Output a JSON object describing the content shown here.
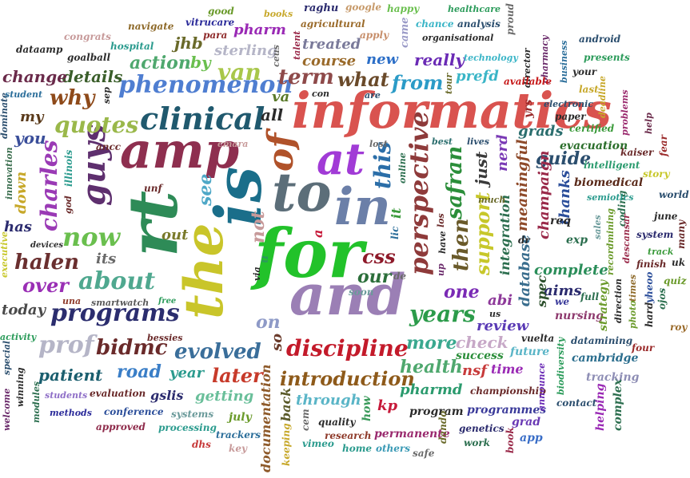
{
  "words": [
    {
      "text": "informatics",
      "color": "#d9534f"
    },
    {
      "text": "the",
      "color": "#c9c52a"
    },
    {
      "text": "rt",
      "color": "#2e8b57"
    },
    {
      "text": "is",
      "color": "#1a6e8a"
    },
    {
      "text": "for",
      "color": "#22c22a"
    },
    {
      "text": "and",
      "color": "#9b7fb5"
    },
    {
      "text": "amp",
      "color": "#8e2f4f"
    },
    {
      "text": "to",
      "color": "#5c6e79"
    },
    {
      "text": "in",
      "color": "#6b7fa8"
    },
    {
      "text": "at",
      "color": "#a13bd6"
    },
    {
      "text": "of",
      "color": "#b0522a"
    },
    {
      "text": "clinical",
      "color": "#20596e"
    },
    {
      "text": "phenomenon",
      "color": "#4f7ed1"
    },
    {
      "text": "perspective",
      "color": "#8e3a3a"
    },
    {
      "text": "discipline",
      "color": "#c31a2a"
    },
    {
      "text": "programs",
      "color": "#2b2d6e"
    },
    {
      "text": "introduction",
      "color": "#8e5a1a"
    },
    {
      "text": "evolved",
      "color": "#3a6e9a"
    },
    {
      "text": "about",
      "color": "#4fa88f"
    },
    {
      "text": "now",
      "color": "#6abf4e"
    },
    {
      "text": "guys",
      "color": "#5e2f6e"
    },
    {
      "text": "quotes",
      "color": "#9ab84a"
    },
    {
      "text": "years",
      "color": "#2b9b4a"
    },
    {
      "text": "halen",
      "color": "#6a2f2f"
    },
    {
      "text": "over",
      "color": "#9a2fb5"
    },
    {
      "text": "this",
      "color": "#2b6ea8"
    },
    {
      "text": "what",
      "color": "#6a4a2a"
    },
    {
      "text": "term",
      "color": "#8e4a4a"
    },
    {
      "text": "from",
      "color": "#2b9bc7"
    },
    {
      "text": "bidmc",
      "color": "#6a2a2a"
    },
    {
      "text": "prof",
      "color": "#b5b5c7"
    },
    {
      "text": "later",
      "color": "#c73a2a"
    },
    {
      "text": "more",
      "color": "#3aa88f"
    },
    {
      "text": "health",
      "color": "#4fa86e"
    },
    {
      "text": "patient",
      "color": "#1a5e6e"
    },
    {
      "text": "road",
      "color": "#3a7ec7"
    },
    {
      "text": "charles",
      "color": "#9a3ab5"
    },
    {
      "text": "safran",
      "color": "#2b8e3a"
    },
    {
      "text": "then",
      "color": "#6a5a2a"
    },
    {
      "text": "support",
      "color": "#c7c72a"
    },
    {
      "text": "one",
      "color": "#7a2ab5"
    },
    {
      "text": "guide",
      "color": "#2b4e6e"
    },
    {
      "text": "van",
      "color": "#a8c74a"
    },
    {
      "text": "why",
      "color": "#8e4a1a"
    },
    {
      "text": "action",
      "color": "#4fa86e"
    },
    {
      "text": "details",
      "color": "#3a5e2a"
    },
    {
      "text": "change",
      "color": "#6a2a4a"
    },
    {
      "text": "you",
      "color": "#3a4e9a"
    },
    {
      "text": "my",
      "color": "#5a3a1a"
    },
    {
      "text": "all",
      "color": "#2b2b2b"
    },
    {
      "text": "va",
      "color": "#5a7a2a"
    },
    {
      "text": "really",
      "color": "#6a2ab5"
    },
    {
      "text": "new",
      "color": "#2b6ec7"
    },
    {
      "text": "course",
      "color": "#9a6a2a"
    },
    {
      "text": "treated",
      "color": "#7a7a9a"
    },
    {
      "text": "sterling",
      "color": "#b5b5c7"
    },
    {
      "text": "by",
      "color": "#6abf4e"
    },
    {
      "text": "jhb",
      "color": "#6a6a2a"
    },
    {
      "text": "pharm",
      "color": "#9a2ab5"
    },
    {
      "text": "our",
      "color": "#2b6e3a"
    },
    {
      "text": "css",
      "color": "#8e1a2a"
    },
    {
      "text": "not",
      "color": "#c79a9a"
    },
    {
      "text": "see",
      "color": "#4fa8c7"
    },
    {
      "text": "out",
      "color": "#7a7a2a"
    },
    {
      "text": "its",
      "color": "#6a6a6a"
    },
    {
      "text": "has",
      "color": "#2b2b6e"
    },
    {
      "text": "down",
      "color": "#c7a82a"
    },
    {
      "text": "today",
      "color": "#4a4a4a"
    },
    {
      "text": "on",
      "color": "#8e9ac7"
    },
    {
      "text": "so",
      "color": "#6a3a2a"
    },
    {
      "text": "year",
      "color": "#2b9b8e"
    },
    {
      "text": "getting",
      "color": "#6abf9a"
    },
    {
      "text": "through",
      "color": "#5ab5c7"
    },
    {
      "text": "pharmd",
      "color": "#2b9b6e"
    },
    {
      "text": "check",
      "color": "#c7a8c7"
    },
    {
      "text": "review",
      "color": "#5a3ab5"
    },
    {
      "text": "complete",
      "color": "#2b8e5a"
    },
    {
      "text": "aims",
      "color": "#2b2b6e"
    },
    {
      "text": "nsf",
      "color": "#c73a3a"
    },
    {
      "text": "time",
      "color": "#9a2ab5"
    },
    {
      "text": "success",
      "color": "#2b8e3a"
    },
    {
      "text": "database",
      "color": "#3a6e8e"
    },
    {
      "text": "meaningful",
      "color": "#8e4a2a"
    },
    {
      "text": "integration",
      "color": "#2b6e4e"
    },
    {
      "text": "champaign",
      "color": "#9a2a4a"
    },
    {
      "text": "thanks",
      "color": "#2b4e9a"
    },
    {
      "text": "grads",
      "color": "#2b6e6e"
    },
    {
      "text": "nerd",
      "color": "#7a3ab5"
    },
    {
      "text": "just",
      "color": "#3a3a3a"
    },
    {
      "text": "prefd",
      "color": "#3ab5c7"
    },
    {
      "text": "biomedical",
      "color": "#5a2a1a"
    },
    {
      "text": "evacuation",
      "color": "#2b6e2b"
    },
    {
      "text": "intelligent",
      "color": "#2b9b6e"
    },
    {
      "text": "spec",
      "color": "#2b4e2b"
    },
    {
      "text": "abi",
      "color": "#8e3a9a"
    },
    {
      "text": "kp",
      "color": "#c71a3a"
    },
    {
      "text": "program",
      "color": "#2b2b2b"
    },
    {
      "text": "documentation",
      "color": "#8e5a2a"
    },
    {
      "text": "back",
      "color": "#5a5a2a"
    },
    {
      "text": "permanente",
      "color": "#9a2a6e"
    },
    {
      "text": "championship",
      "color": "#6a2a2a"
    },
    {
      "text": "programmes",
      "color": "#3a3a9a"
    },
    {
      "text": "genetics",
      "color": "#2b2b6e"
    },
    {
      "text": "cambridge",
      "color": "#2b6e8e"
    },
    {
      "text": "future",
      "color": "#5ab5c7"
    },
    {
      "text": "vuelta",
      "color": "#2b2b2b"
    },
    {
      "text": "datamining",
      "color": "#2b4e6e"
    },
    {
      "text": "nursing",
      "color": "#8e3a6e"
    },
    {
      "text": "strategy",
      "color": "#6a9a2a"
    },
    {
      "text": "tracking",
      "color": "#8e8eb5"
    },
    {
      "text": "helping",
      "color": "#9a2ab5"
    },
    {
      "text": "complex",
      "color": "#2b6e4e"
    },
    {
      "text": "contact",
      "color": "#2b4e6e"
    },
    {
      "text": "app",
      "color": "#3a6ec7"
    },
    {
      "text": "grad",
      "color": "#6a3ab5"
    },
    {
      "text": "book",
      "color": "#9a2a4a"
    },
    {
      "text": "work",
      "color": "#2b6e4e"
    },
    {
      "text": "dando",
      "color": "#6a6a2a"
    },
    {
      "text": "safe",
      "color": "#6a6a6a"
    },
    {
      "text": "others",
      "color": "#3a9ab5"
    },
    {
      "text": "home",
      "color": "#2b9b8e"
    },
    {
      "text": "research",
      "color": "#8e3a2a"
    },
    {
      "text": "quality",
      "color": "#2b2b2b"
    },
    {
      "text": "vimeo",
      "color": "#2b9b8e"
    },
    {
      "text": "keeping",
      "color": "#c7a82a"
    },
    {
      "text": "cem",
      "color": "#6a6a6a"
    },
    {
      "text": "how",
      "color": "#3a9a5a"
    },
    {
      "text": "key",
      "color": "#c79a9a"
    },
    {
      "text": "trackers",
      "color": "#2b6e9a"
    },
    {
      "text": "july",
      "color": "#6a9a2a"
    },
    {
      "text": "dhs",
      "color": "#c73a3a"
    },
    {
      "text": "processing",
      "color": "#2b9b8e"
    },
    {
      "text": "systems",
      "color": "#6a9a9a"
    },
    {
      "text": "gslis",
      "color": "#2b2b6e"
    },
    {
      "text": "approved",
      "color": "#8e2a4a"
    },
    {
      "text": "conference",
      "color": "#2b4e9a"
    },
    {
      "text": "evaluation",
      "color": "#6a2a2a"
    },
    {
      "text": "methods",
      "color": "#2b2b9a"
    },
    {
      "text": "students",
      "color": "#8e6ec7"
    },
    {
      "text": "modules",
      "color": "#2b6e4e"
    },
    {
      "text": "winning",
      "color": "#2b2b2b"
    },
    {
      "text": "welcome",
      "color": "#6a2a6a"
    },
    {
      "text": "special",
      "color": "#2b4e6e"
    },
    {
      "text": "activity",
      "color": "#2b9b5a"
    },
    {
      "text": "smartwatch",
      "color": "#5a5a5a"
    },
    {
      "text": "una",
      "color": "#8e3a2a"
    },
    {
      "text": "bessies",
      "color": "#6a2a2a"
    },
    {
      "text": "executive",
      "color": "#c7c72a"
    },
    {
      "text": "illinois",
      "color": "#2b9b8e"
    },
    {
      "text": "innovation",
      "color": "#3a6e4e"
    },
    {
      "text": "dominate",
      "color": "#2b4e6e"
    },
    {
      "text": "student",
      "color": "#2b6e9a"
    },
    {
      "text": "dataamp",
      "color": "#2b2b2b"
    },
    {
      "text": "goalball",
      "color": "#2b2b2b"
    },
    {
      "text": "congrats",
      "color": "#c79a9a"
    },
    {
      "text": "navigate",
      "color": "#8e6a2a"
    },
    {
      "text": "hospital",
      "color": "#2b9b8e"
    },
    {
      "text": "para",
      "color": "#8e2a2a"
    },
    {
      "text": "vitrucare",
      "color": "#2b2b9a"
    },
    {
      "text": "good",
      "color": "#6a9a2a"
    },
    {
      "text": "books",
      "color": "#c7a82a"
    },
    {
      "text": "raghu",
      "color": "#2b2b6e"
    },
    {
      "text": "agricultural",
      "color": "#9a6a2a"
    },
    {
      "text": "google",
      "color": "#c79a6a"
    },
    {
      "text": "apply",
      "color": "#c78e6a"
    },
    {
      "text": "happy",
      "color": "#6abf4e"
    },
    {
      "text": "chance",
      "color": "#3ab5c7"
    },
    {
      "text": "healthcare",
      "color": "#2b9b5a"
    },
    {
      "text": "analysis",
      "color": "#2b4e6e"
    },
    {
      "text": "organisational",
      "color": "#2b2b2b"
    },
    {
      "text": "proud",
      "color": "#6a6a6a"
    },
    {
      "text": "came",
      "color": "#9a9ac7"
    },
    {
      "text": "technology",
      "color": "#3ab5c7"
    },
    {
      "text": "your",
      "color": "#2b2b2b"
    },
    {
      "text": "android",
      "color": "#2b4e6e"
    },
    {
      "text": "presents",
      "color": "#2b9b5a"
    },
    {
      "text": "pharmacy",
      "color": "#6a2a6a"
    },
    {
      "text": "director",
      "color": "#2b2b2b"
    },
    {
      "text": "business",
      "color": "#2b6e9a"
    },
    {
      "text": "available",
      "color": "#c71a1a"
    },
    {
      "text": "yrs",
      "color": "#9a2a2a"
    },
    {
      "text": "last",
      "color": "#c7a82a"
    },
    {
      "text": "deadline",
      "color": "#c7a82a"
    },
    {
      "text": "electronic",
      "color": "#2b4e6e"
    },
    {
      "text": "paper",
      "color": "#2b2b2b"
    },
    {
      "text": "certified",
      "color": "#3a9a3a"
    },
    {
      "text": "problems",
      "color": "#9a2a6e"
    },
    {
      "text": "help",
      "color": "#6a2a4a"
    },
    {
      "text": "fear",
      "color": "#9a2a2a"
    },
    {
      "text": "kaiser",
      "color": "#6a2a2a"
    },
    {
      "text": "story",
      "color": "#c7c72a"
    },
    {
      "text": "track",
      "color": "#3a9a3a"
    },
    {
      "text": "world",
      "color": "#2b4e6e"
    },
    {
      "text": "june",
      "color": "#2b2b2b"
    },
    {
      "text": "many",
      "color": "#6a2a2a"
    },
    {
      "text": "system",
      "color": "#2b2b6e"
    },
    {
      "text": "finish",
      "color": "#6a2a2a"
    },
    {
      "text": "uk",
      "color": "#2b2b2b"
    },
    {
      "text": "coding",
      "color": "#2b6e4e"
    },
    {
      "text": "semiotics",
      "color": "#2b9b8e"
    },
    {
      "text": "req",
      "color": "#2b2b2b"
    },
    {
      "text": "exp",
      "color": "#2b6e4e"
    },
    {
      "text": "sales",
      "color": "#6a9a9a"
    },
    {
      "text": "recordmining",
      "color": "#6a9a2a"
    },
    {
      "text": "descansar",
      "color": "#9a2a4a"
    },
    {
      "text": "quiz",
      "color": "#6a9a2a"
    },
    {
      "text": "direction",
      "color": "#2b2b2b"
    },
    {
      "text": "yheoo",
      "color": "#2b4e9a"
    },
    {
      "text": "times",
      "color": "#8e6a2a"
    },
    {
      "text": "ojos",
      "color": "#2b6e4e"
    },
    {
      "text": "roy",
      "color": "#9a6a2a"
    },
    {
      "text": "four",
      "color": "#9a2a2a"
    },
    {
      "text": "hard",
      "color": "#2b2b2b"
    },
    {
      "text": "photo",
      "color": "#6a9a2a"
    },
    {
      "text": "full",
      "color": "#2b6e4e"
    },
    {
      "text": "we",
      "color": "#3a3a9a"
    },
    {
      "text": "us",
      "color": "#2b2b2b"
    },
    {
      "text": "dr",
      "color": "#2b2b2b"
    },
    {
      "text": "biodiversity",
      "color": "#2b9b5a"
    },
    {
      "text": "announce",
      "color": "#6a2ab5"
    },
    {
      "text": "ancc",
      "color": "#6a2a2a"
    },
    {
      "text": "cmara",
      "color": "#c79a9a"
    },
    {
      "text": "ceus",
      "color": "#6a6a6a"
    },
    {
      "text": "lic",
      "color": "#2b6e9a"
    },
    {
      "text": "it",
      "color": "#3a9a3a"
    },
    {
      "text": "best",
      "color": "#2b6e6e"
    },
    {
      "text": "lives",
      "color": "#2b4e6e"
    },
    {
      "text": "much",
      "color": "#6a6a2a"
    },
    {
      "text": "soon",
      "color": "#6a9a9a"
    },
    {
      "text": "de",
      "color": "#6a6a6a"
    },
    {
      "text": "have",
      "color": "#2b2b2b"
    },
    {
      "text": "los",
      "color": "#6a2a2a"
    },
    {
      "text": "up",
      "color": "#6a2a6a"
    },
    {
      "text": "u",
      "color": "#2b9b5a"
    },
    {
      "text": "a",
      "color": "#c71a3a"
    },
    {
      "text": "via",
      "color": "#2b2b2b"
    },
    {
      "text": "online",
      "color": "#2b6e4e"
    },
    {
      "text": "lost",
      "color": "#6a6a6a"
    },
    {
      "text": "are",
      "color": "#2b4e6e"
    },
    {
      "text": "con",
      "color": "#2b2b2b"
    },
    {
      "text": "sep",
      "color": "#2b2b2b"
    },
    {
      "text": "god",
      "color": "#6a2a2a"
    },
    {
      "text": "unf",
      "color": "#6a2a2a"
    },
    {
      "text": "devices",
      "color": "#2b2b2b"
    },
    {
      "text": "free",
      "color": "#2b9b5a"
    },
    {
      "text": "talent",
      "color": "#9a2a4a"
    },
    {
      "text": "tour",
      "color": "#6a6a2a"
    }
  ]
}
